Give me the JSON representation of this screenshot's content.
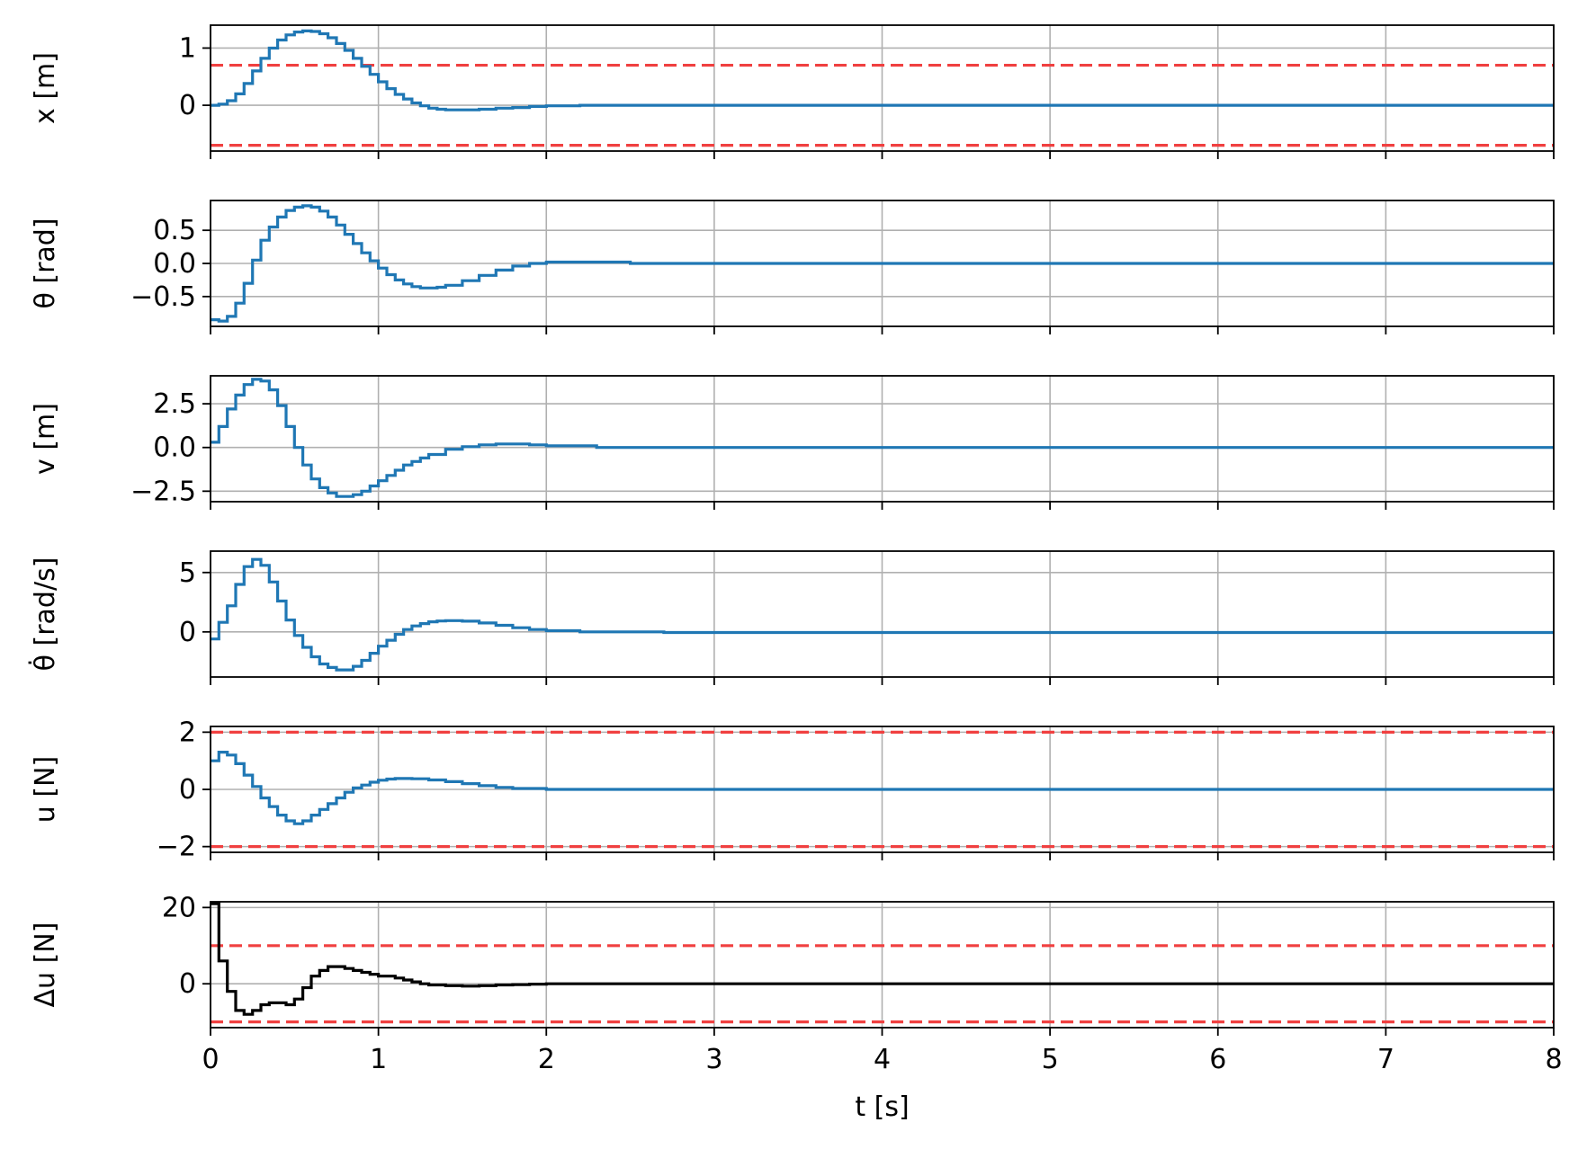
{
  "colors": {
    "series": "#1f77b4",
    "delta": "#000000",
    "limit": "#f04040",
    "grid": "#b0b0b0",
    "axes": "#000000"
  },
  "chart_data": [
    {
      "type": "line",
      "ylabel": "x [m]",
      "xlim": [
        0,
        8
      ],
      "ylim": [
        -0.8,
        1.4
      ],
      "yticks": [
        0,
        1
      ],
      "ytick_labels": [
        "0",
        "1"
      ],
      "limits": [
        0.7,
        -0.7
      ],
      "series": [
        {
          "step": true,
          "color": "#1f77b4",
          "x": [
            0,
            0.05,
            0.1,
            0.15,
            0.2,
            0.25,
            0.3,
            0.35,
            0.4,
            0.45,
            0.5,
            0.55,
            0.6,
            0.65,
            0.7,
            0.75,
            0.8,
            0.85,
            0.9,
            0.95,
            1.0,
            1.05,
            1.1,
            1.15,
            1.2,
            1.25,
            1.3,
            1.35,
            1.4,
            1.5,
            1.6,
            1.7,
            1.8,
            1.9,
            2.0,
            2.2,
            8
          ],
          "y": [
            0,
            0.02,
            0.08,
            0.2,
            0.38,
            0.6,
            0.82,
            1.0,
            1.14,
            1.23,
            1.28,
            1.3,
            1.29,
            1.25,
            1.18,
            1.08,
            0.96,
            0.82,
            0.68,
            0.54,
            0.41,
            0.29,
            0.19,
            0.11,
            0.04,
            -0.01,
            -0.05,
            -0.07,
            -0.08,
            -0.08,
            -0.07,
            -0.05,
            -0.04,
            -0.02,
            -0.01,
            0,
            0
          ]
        }
      ]
    },
    {
      "type": "line",
      "ylabel": "θ [rad]",
      "xlim": [
        0,
        8
      ],
      "ylim": [
        -0.95,
        0.95
      ],
      "yticks": [
        0.5,
        0,
        -0.5
      ],
      "ytick_labels": [
        "0.5",
        "0.0",
        "−0.5"
      ],
      "limits": [],
      "series": [
        {
          "step": true,
          "color": "#1f77b4",
          "x": [
            0,
            0.05,
            0.1,
            0.15,
            0.2,
            0.25,
            0.3,
            0.35,
            0.4,
            0.45,
            0.5,
            0.55,
            0.6,
            0.65,
            0.7,
            0.75,
            0.8,
            0.85,
            0.9,
            0.95,
            1.0,
            1.05,
            1.1,
            1.15,
            1.2,
            1.25,
            1.3,
            1.35,
            1.4,
            1.5,
            1.6,
            1.7,
            1.8,
            1.9,
            2.0,
            2.5,
            8
          ],
          "y": [
            -0.85,
            -0.87,
            -0.8,
            -0.6,
            -0.3,
            0.05,
            0.35,
            0.55,
            0.7,
            0.8,
            0.85,
            0.87,
            0.85,
            0.79,
            0.7,
            0.58,
            0.44,
            0.3,
            0.16,
            0.04,
            -0.07,
            -0.17,
            -0.25,
            -0.31,
            -0.35,
            -0.37,
            -0.37,
            -0.36,
            -0.33,
            -0.26,
            -0.18,
            -0.1,
            -0.04,
            0,
            0.02,
            0,
            0
          ]
        }
      ]
    },
    {
      "type": "line",
      "ylabel": "v [m]",
      "xlim": [
        0,
        8
      ],
      "ylim": [
        -3.1,
        4.1
      ],
      "yticks": [
        2.5,
        0,
        -2.5
      ],
      "ytick_labels": [
        "2.5",
        "0.0",
        "−2.5"
      ],
      "limits": [],
      "series": [
        {
          "step": true,
          "color": "#1f77b4",
          "x": [
            0,
            0.05,
            0.1,
            0.15,
            0.2,
            0.25,
            0.3,
            0.35,
            0.4,
            0.45,
            0.5,
            0.55,
            0.6,
            0.65,
            0.7,
            0.75,
            0.8,
            0.85,
            0.9,
            0.95,
            1.0,
            1.05,
            1.1,
            1.15,
            1.2,
            1.25,
            1.3,
            1.4,
            1.5,
            1.6,
            1.7,
            1.8,
            1.9,
            2.0,
            2.3,
            8
          ],
          "y": [
            0.3,
            1.2,
            2.2,
            3.0,
            3.6,
            3.9,
            3.8,
            3.3,
            2.4,
            1.2,
            0,
            -1.0,
            -1.8,
            -2.3,
            -2.6,
            -2.8,
            -2.8,
            -2.7,
            -2.5,
            -2.2,
            -1.9,
            -1.6,
            -1.3,
            -1.0,
            -0.8,
            -0.6,
            -0.4,
            -0.1,
            0.05,
            0.15,
            0.2,
            0.2,
            0.15,
            0.1,
            0,
            0
          ]
        }
      ]
    },
    {
      "type": "line",
      "ylabel": "θ̇ [rad/s]",
      "xlim": [
        0,
        8
      ],
      "ylim": [
        -3.8,
        6.8
      ],
      "yticks": [
        5,
        0
      ],
      "ytick_labels": [
        "5",
        "0"
      ],
      "limits": [],
      "series": [
        {
          "step": true,
          "color": "#1f77b4",
          "x": [
            0,
            0.05,
            0.1,
            0.15,
            0.2,
            0.25,
            0.3,
            0.35,
            0.4,
            0.45,
            0.5,
            0.55,
            0.6,
            0.65,
            0.7,
            0.75,
            0.8,
            0.85,
            0.9,
            0.95,
            1.0,
            1.05,
            1.1,
            1.15,
            1.2,
            1.25,
            1.3,
            1.35,
            1.4,
            1.5,
            1.6,
            1.7,
            1.8,
            1.9,
            2.0,
            2.2,
            2.7,
            8
          ],
          "y": [
            -0.6,
            0.8,
            2.2,
            4.0,
            5.5,
            6.1,
            5.6,
            4.2,
            2.6,
            1.0,
            -0.3,
            -1.3,
            -2.1,
            -2.7,
            -3.0,
            -3.2,
            -3.2,
            -2.9,
            -2.4,
            -1.8,
            -1.2,
            -0.7,
            -0.2,
            0.2,
            0.5,
            0.7,
            0.85,
            0.92,
            0.95,
            0.9,
            0.75,
            0.55,
            0.35,
            0.2,
            0.1,
            0,
            -0.05,
            0
          ]
        }
      ]
    },
    {
      "type": "line",
      "ylabel": "u [N]",
      "xlim": [
        0,
        8
      ],
      "ylim": [
        -2.2,
        2.2
      ],
      "yticks": [
        2,
        0,
        -2
      ],
      "ytick_labels": [
        "2",
        "0",
        "−2"
      ],
      "limits": [
        2,
        -2
      ],
      "series": [
        {
          "step": true,
          "color": "#1f77b4",
          "x": [
            0,
            0.05,
            0.1,
            0.15,
            0.2,
            0.25,
            0.3,
            0.35,
            0.4,
            0.45,
            0.5,
            0.55,
            0.6,
            0.65,
            0.7,
            0.75,
            0.8,
            0.85,
            0.9,
            0.95,
            1.0,
            1.05,
            1.1,
            1.15,
            1.2,
            1.3,
            1.4,
            1.5,
            1.6,
            1.7,
            1.8,
            2.0,
            8
          ],
          "y": [
            1.0,
            1.3,
            1.2,
            0.9,
            0.5,
            0.1,
            -0.3,
            -0.6,
            -0.9,
            -1.1,
            -1.2,
            -1.1,
            -0.9,
            -0.7,
            -0.5,
            -0.3,
            -0.1,
            0.05,
            0.15,
            0.25,
            0.32,
            0.36,
            0.38,
            0.38,
            0.37,
            0.33,
            0.27,
            0.2,
            0.13,
            0.07,
            0.03,
            0,
            0
          ]
        }
      ]
    },
    {
      "type": "line",
      "ylabel": "Δu [N]",
      "xlabel": "t [s]",
      "xlim": [
        0,
        8
      ],
      "xticks": [
        0,
        1,
        2,
        3,
        4,
        5,
        6,
        7,
        8
      ],
      "xtick_labels": [
        "0",
        "1",
        "2",
        "3",
        "4",
        "5",
        "6",
        "7",
        "8"
      ],
      "ylim": [
        -11.5,
        21.5
      ],
      "yticks": [
        20,
        0
      ],
      "ytick_labels": [
        "20",
        "0"
      ],
      "limits": [
        10,
        -10
      ],
      "series": [
        {
          "step": true,
          "color": "#000000",
          "x": [
            0,
            0.05,
            0.1,
            0.15,
            0.2,
            0.25,
            0.3,
            0.35,
            0.4,
            0.45,
            0.5,
            0.55,
            0.6,
            0.65,
            0.7,
            0.75,
            0.8,
            0.85,
            0.9,
            0.95,
            1.0,
            1.05,
            1.1,
            1.15,
            1.2,
            1.25,
            1.3,
            1.4,
            1.5,
            1.6,
            1.7,
            1.8,
            1.9,
            2.0,
            8
          ],
          "y": [
            21,
            6,
            -2,
            -7,
            -8,
            -7,
            -5.5,
            -5,
            -5,
            -5.5,
            -4,
            -1,
            2,
            3.5,
            4.5,
            4.5,
            4,
            3.5,
            3,
            2.5,
            2,
            2,
            1.5,
            1,
            0.5,
            0,
            -0.3,
            -0.5,
            -0.6,
            -0.5,
            -0.3,
            -0.2,
            -0.1,
            0,
            0
          ]
        }
      ]
    }
  ]
}
